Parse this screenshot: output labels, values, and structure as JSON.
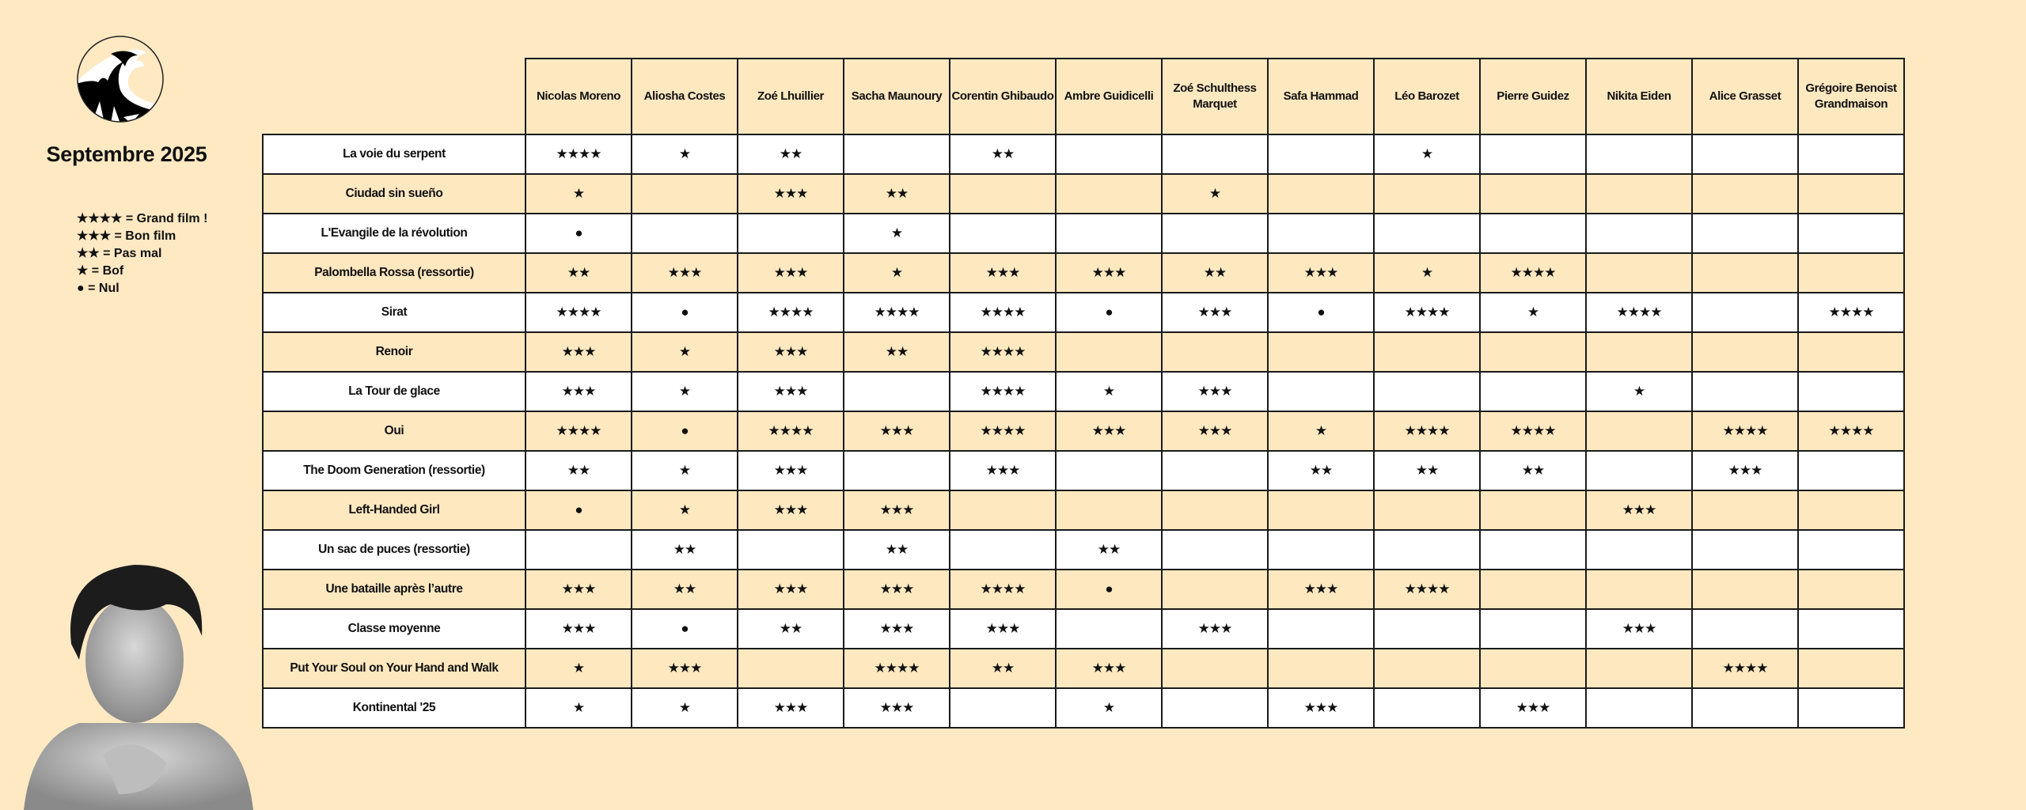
{
  "title": "Septembre 2025",
  "logo_icon": "great-wave-icon",
  "colors": {
    "background": "#fee9c3",
    "row_alt": "#fee8c0",
    "row_white": "#ffffff",
    "border": "#1a1a1a"
  },
  "legend": [
    {
      "symbol": "★★★★",
      "label": "= Grand film !"
    },
    {
      "symbol": "★★★",
      "label": "= Bon film"
    },
    {
      "symbol": "★★",
      "label": "= Pas mal"
    },
    {
      "symbol": "★",
      "label": "= Bof"
    },
    {
      "symbol": "●",
      "label": " = Nul"
    }
  ],
  "critics": [
    "Nicolas Moreno",
    "Aliosha Costes",
    "Zoé Lhuillier",
    "Sacha Maunoury",
    "Corentin Ghibaudo",
    "Ambre Guidicelli",
    "Zoé Schulthess Marquet",
    "Safa Hammad",
    "Léo Barozet",
    "Pierre Guidez",
    "Nikita Eiden",
    "Alice Grasset",
    "Grégoire Benoist Grandmaison"
  ],
  "films": [
    {
      "title": "La voie du serpent",
      "ratings": [
        "★★★★",
        "★",
        "★★",
        "",
        "★★",
        "",
        "",
        "",
        "★",
        "",
        "",
        "",
        ""
      ]
    },
    {
      "title": "Ciudad sin sueño",
      "ratings": [
        "★",
        "",
        "★★★",
        "★★",
        "",
        "",
        "★",
        "",
        "",
        "",
        "",
        "",
        ""
      ]
    },
    {
      "title": "L'Evangile de la révolution",
      "ratings": [
        "●",
        "",
        "",
        "★",
        "",
        "",
        "",
        "",
        "",
        "",
        "",
        "",
        ""
      ]
    },
    {
      "title": "Palombella Rossa (ressortie)",
      "ratings": [
        "★★",
        "★★★",
        "★★★",
        "★",
        "★★★",
        "★★★",
        "★★",
        "★★★",
        "★",
        "★★★★",
        "",
        "",
        ""
      ]
    },
    {
      "title": "Sirat",
      "ratings": [
        "★★★★",
        "●",
        "★★★★",
        "★★★★",
        "★★★★",
        "●",
        "★★★",
        "●",
        "★★★★",
        "★",
        "★★★★",
        "",
        "★★★★"
      ]
    },
    {
      "title": "Renoir",
      "ratings": [
        "★★★",
        "★",
        "★★★",
        "★★",
        "★★★★",
        "",
        "",
        "",
        "",
        "",
        "",
        "",
        ""
      ]
    },
    {
      "title": "La Tour de glace",
      "ratings": [
        "★★★",
        "★",
        "★★★",
        "",
        "★★★★",
        "★",
        "★★★",
        "",
        "",
        "",
        "★",
        "",
        ""
      ]
    },
    {
      "title": "Oui",
      "ratings": [
        "★★★★",
        "●",
        "★★★★",
        "★★★",
        "★★★★",
        "★★★",
        "★★★",
        "★",
        "★★★★",
        "★★★★",
        "",
        "★★★★",
        "★★★★"
      ]
    },
    {
      "title": "The Doom Generation (ressortie)",
      "ratings": [
        "★★",
        "★",
        "★★★",
        "",
        "★★★",
        "",
        "",
        "★★",
        "★★",
        "★★",
        "",
        "★★★",
        ""
      ]
    },
    {
      "title": "Left-Handed Girl",
      "ratings": [
        "●",
        "★",
        "★★★",
        "★★★",
        "",
        "",
        "",
        "",
        "",
        "",
        "★★★",
        "",
        ""
      ]
    },
    {
      "title": "Un sac de puces (ressortie)",
      "ratings": [
        "",
        "★★",
        "",
        "★★",
        "",
        "★★",
        "",
        "",
        "",
        "",
        "",
        "",
        ""
      ]
    },
    {
      "title": "Une bataille après l’autre",
      "ratings": [
        "★★★",
        "★★",
        "★★★",
        "★★★",
        "★★★★",
        "●",
        "",
        "★★★",
        "★★★★",
        "",
        "",
        "",
        ""
      ]
    },
    {
      "title": "Classe moyenne",
      "ratings": [
        "★★★",
        "●",
        "★★",
        "★★★",
        "★★★",
        "",
        "★★★",
        "",
        "",
        "",
        "★★★",
        "",
        ""
      ]
    },
    {
      "title": "Put Your Soul on Your Hand and Walk",
      "ratings": [
        "★",
        "★★★",
        "",
        "★★★★",
        "★★",
        "★★★",
        "",
        "",
        "",
        "",
        "",
        "★★★★",
        ""
      ]
    },
    {
      "title": "Kontinental '25",
      "ratings": [
        "★",
        "★",
        "★★★",
        "★★★",
        "",
        "★",
        "",
        "★★★",
        "",
        "★★★",
        "",
        "",
        ""
      ]
    }
  ]
}
